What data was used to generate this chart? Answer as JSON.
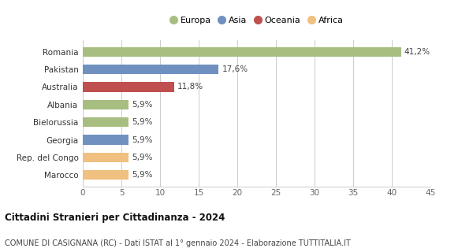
{
  "categories": [
    "Marocco",
    "Rep. del Congo",
    "Georgia",
    "Bielorussia",
    "Albania",
    "Australia",
    "Pakistan",
    "Romania"
  ],
  "values": [
    5.9,
    5.9,
    5.9,
    5.9,
    5.9,
    11.8,
    17.6,
    41.2
  ],
  "colors": [
    "#f0c080",
    "#f0c080",
    "#7090c0",
    "#a8be80",
    "#a8be80",
    "#c05050",
    "#7090c0",
    "#a8be80"
  ],
  "labels": [
    "5,9%",
    "5,9%",
    "5,9%",
    "5,9%",
    "5,9%",
    "11,8%",
    "17,6%",
    "41,2%"
  ],
  "legend": [
    {
      "label": "Europa",
      "color": "#a8be80"
    },
    {
      "label": "Asia",
      "color": "#7090c0"
    },
    {
      "label": "Oceania",
      "color": "#c05050"
    },
    {
      "label": "Africa",
      "color": "#f0c080"
    }
  ],
  "xlim": [
    0,
    45
  ],
  "xticks": [
    0,
    5,
    10,
    15,
    20,
    25,
    30,
    35,
    40,
    45
  ],
  "title_bold": "Cittadini Stranieri per Cittadinanza - 2024",
  "subtitle": "COMUNE DI CASIGNANA (RC) - Dati ISTAT al 1° gennaio 2024 - Elaborazione TUTTITALIA.IT",
  "background_color": "#ffffff",
  "grid_color": "#cccccc"
}
